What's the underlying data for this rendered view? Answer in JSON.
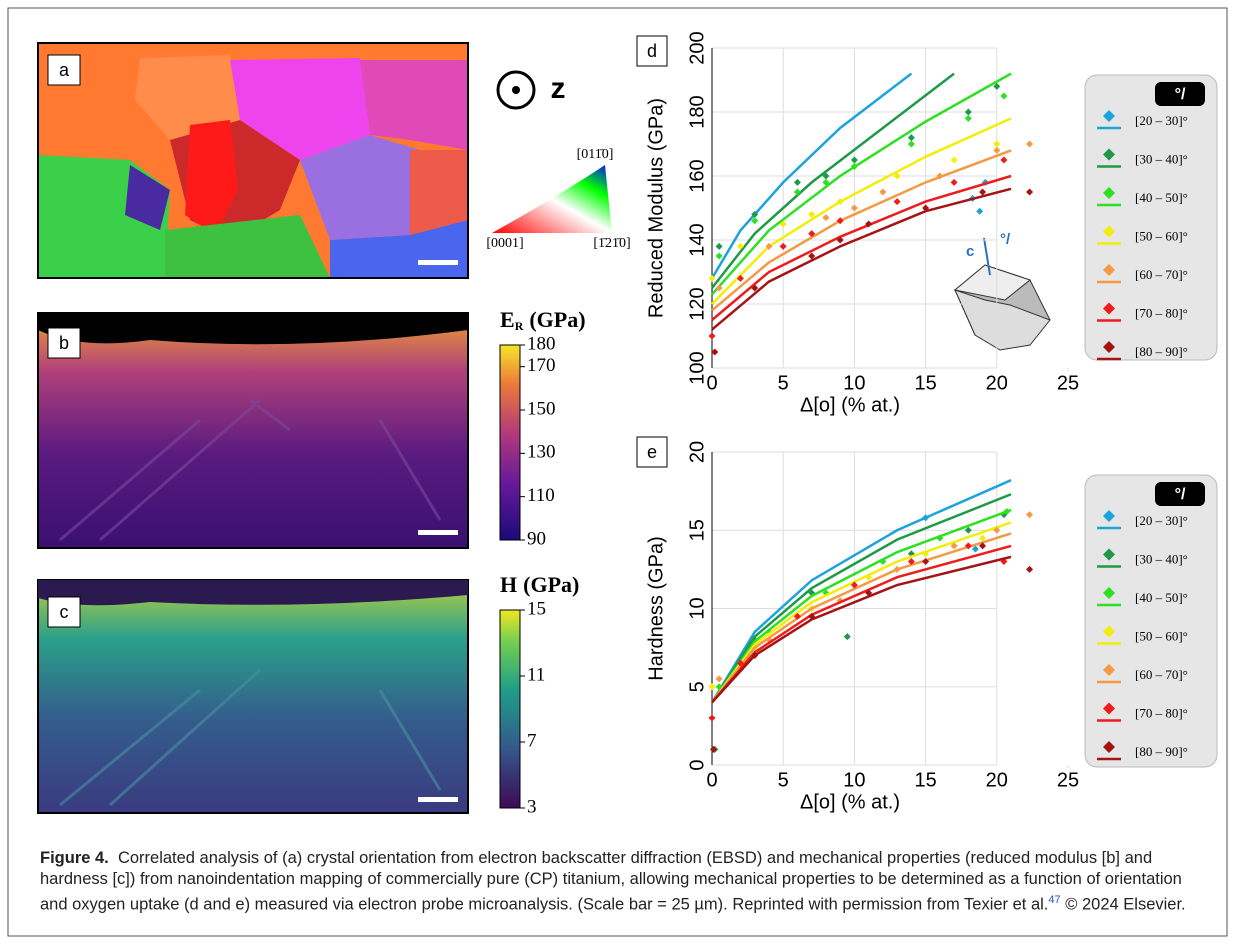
{
  "panels": {
    "a": "a",
    "b": "b",
    "c": "c",
    "d": "d",
    "e": "e"
  },
  "z_axis": "z",
  "triangle": {
    "top": "[011̄0]",
    "left": "[0001]",
    "right": "[1̄21̄0]"
  },
  "colorbars": [
    {
      "title": "E",
      "subscript": "R",
      "unit": "(GPa)",
      "lim": [
        90,
        180
      ],
      "ticks": [
        180,
        170,
        150,
        130,
        110,
        90
      ]
    },
    {
      "title": "H",
      "subscript": "",
      "unit": "(GPa)",
      "lim": [
        3,
        15
      ],
      "ticks": [
        15,
        11,
        7,
        3
      ]
    }
  ],
  "inset": {
    "axis": "c",
    "angle": "°/"
  },
  "chart_data": [
    {
      "type": "scatter",
      "xlabel": "Δ[o] (% at.)",
      "ylabel": "Reduced Modulus (GPa)",
      "xlim": [
        0,
        25
      ],
      "ylim": [
        100,
        200
      ],
      "xticks": [
        0,
        5,
        10,
        15,
        20,
        25
      ],
      "yticks": [
        100,
        120,
        140,
        160,
        180,
        200
      ],
      "grid": true,
      "legend_title": "°/",
      "series": [
        {
          "name": "[20 – 30]°",
          "color": "#1ca3dc",
          "x": [
            18.3,
            18.8,
            19.2
          ],
          "values": [
            153,
            149,
            158
          ],
          "fit_x": [
            0,
            2,
            5,
            9,
            14
          ],
          "fit_values": [
            128,
            143,
            158,
            175,
            192
          ]
        },
        {
          "name": "[30 – 40]°",
          "color": "#1d9a48",
          "x": [
            0.5,
            3,
            6,
            8,
            10,
            14,
            18,
            20
          ],
          "values": [
            138,
            148,
            158,
            160,
            165,
            172,
            180,
            188
          ],
          "fit_x": [
            0,
            3,
            7,
            12,
            17
          ],
          "fit_values": [
            125,
            142,
            158,
            175,
            192
          ]
        },
        {
          "name": "[40 – 50]°",
          "color": "#2ee022",
          "x": [
            0.5,
            3,
            6,
            8,
            10,
            14,
            18,
            20.5
          ],
          "values": [
            135,
            146,
            155,
            158,
            163,
            170,
            178,
            185
          ],
          "fit_x": [
            0,
            4,
            9,
            15,
            21
          ],
          "fit_values": [
            123,
            143,
            160,
            177,
            192
          ]
        },
        {
          "name": "[50 – 60]°",
          "color": "#f2ee0a",
          "x": [
            0,
            2,
            5,
            7,
            9,
            13,
            17,
            20
          ],
          "values": [
            128,
            138,
            145,
            148,
            152,
            160,
            165,
            170
          ],
          "fit_x": [
            0,
            4,
            9,
            15,
            21
          ],
          "fit_values": [
            120,
            138,
            152,
            166,
            178
          ]
        },
        {
          "name": "[60 – 70]°",
          "color": "#f39a43",
          "x": [
            0.5,
            4,
            8,
            10,
            12,
            16,
            20,
            22.3
          ],
          "values": [
            125,
            138,
            147,
            150,
            155,
            160,
            168,
            170
          ],
          "fit_x": [
            0,
            4,
            9,
            15,
            21
          ],
          "fit_values": [
            118,
            133,
            146,
            158,
            168
          ]
        },
        {
          "name": "[70 – 80]°",
          "color": "#ee1c1c",
          "x": [
            0,
            2,
            5,
            7,
            9,
            13,
            17,
            20.5
          ],
          "values": [
            110,
            128,
            138,
            142,
            146,
            152,
            158,
            165
          ],
          "fit_x": [
            0,
            4,
            9,
            15,
            21
          ],
          "fit_values": [
            115,
            130,
            141,
            152,
            160
          ]
        },
        {
          "name": "[80 – 90]°",
          "color": "#a51414",
          "x": [
            0.2,
            3,
            7,
            9,
            11,
            15,
            19,
            22.3
          ],
          "values": [
            105,
            125,
            135,
            140,
            145,
            150,
            155,
            155
          ],
          "fit_x": [
            0,
            4,
            9,
            15,
            21
          ],
          "fit_values": [
            112,
            127,
            138,
            149,
            156
          ]
        }
      ]
    },
    {
      "type": "scatter",
      "xlabel": "Δ[o] (% at.)",
      "ylabel": "Hardness (GPa)",
      "xlim": [
        0,
        25
      ],
      "ylim": [
        0,
        20
      ],
      "xticks": [
        0,
        5,
        10,
        15,
        20,
        25
      ],
      "yticks": [
        0,
        5,
        10,
        15,
        20
      ],
      "grid": true,
      "legend_title": "°/",
      "series": [
        {
          "name": "[20 – 30]°",
          "color": "#1ca3dc",
          "x": [
            15,
            18.5
          ],
          "values": [
            15.8,
            13.8
          ],
          "fit_x": [
            0,
            3,
            7,
            13,
            21
          ],
          "fit_values": [
            4,
            8.5,
            11.8,
            15,
            18.2
          ]
        },
        {
          "name": "[30 – 40]°",
          "color": "#1d9a48",
          "x": [
            0.2,
            3,
            7,
            9.5,
            14,
            18,
            20.5
          ],
          "values": [
            1,
            8,
            11,
            8.2,
            13.5,
            15,
            16
          ],
          "fit_x": [
            0,
            3,
            7,
            13,
            21
          ],
          "fit_values": [
            4,
            8.2,
            11.3,
            14.4,
            17.3
          ]
        },
        {
          "name": "[40 – 50]°",
          "color": "#2ee022",
          "x": [
            0.5,
            4,
            8,
            12,
            16,
            20.7
          ],
          "values": [
            5,
            8.5,
            11,
            13,
            14.5,
            16.2
          ],
          "fit_x": [
            0,
            3,
            7,
            13,
            21
          ],
          "fit_values": [
            4,
            7.9,
            10.8,
            13.6,
            16.3
          ]
        },
        {
          "name": "[50 – 60]°",
          "color": "#f2ee0a",
          "x": [
            0,
            3,
            7,
            11,
            15,
            19
          ],
          "values": [
            5,
            7.5,
            10,
            12,
            13.5,
            14.5
          ],
          "fit_x": [
            0,
            3,
            7,
            13,
            21
          ],
          "fit_values": [
            4,
            7.7,
            10.4,
            13,
            15.5
          ]
        },
        {
          "name": "[60 – 70]°",
          "color": "#f39a43",
          "x": [
            0.5,
            4,
            9,
            13,
            17,
            20,
            22.3
          ],
          "values": [
            5.5,
            8,
            10.5,
            12.5,
            14,
            15,
            16
          ],
          "fit_x": [
            0,
            3,
            7,
            13,
            21
          ],
          "fit_values": [
            4,
            7.5,
            10,
            12.5,
            14.8
          ]
        },
        {
          "name": "[70 – 80]°",
          "color": "#ee1c1c",
          "x": [
            0,
            2,
            6,
            10,
            14,
            18,
            20.5
          ],
          "values": [
            3,
            6.5,
            9.5,
            11.5,
            13,
            14,
            13
          ],
          "fit_x": [
            0,
            3,
            7,
            13,
            21
          ],
          "fit_values": [
            4,
            7.2,
            9.6,
            12,
            14
          ]
        },
        {
          "name": "[80 – 90]°",
          "color": "#a51414",
          "x": [
            0.1,
            3,
            7,
            11,
            15,
            19,
            22.3
          ],
          "values": [
            1,
            7,
            9.5,
            11,
            13,
            14,
            12.5
          ],
          "fit_x": [
            0,
            3,
            7,
            13,
            21
          ],
          "fit_values": [
            4,
            7,
            9.3,
            11.5,
            13.3
          ]
        }
      ]
    }
  ],
  "caption": {
    "label": "Figure 4.",
    "text": "Correlated analysis of (a) crystal orientation from electron backscatter diffraction (EBSD) and mechanical properties (reduced modulus [b] and hardness [c]) from nanoindentation mapping of commercially pure (CP) titanium, allowing mechanical properties to be determined as a function of orientation and oxygen uptake (d and e) measured via electron probe microanalysis. (Scale bar = 25 µm). Reprinted with permission from Texier et al.",
    "ref": "47",
    "after": "© 2024 Elsevier."
  }
}
